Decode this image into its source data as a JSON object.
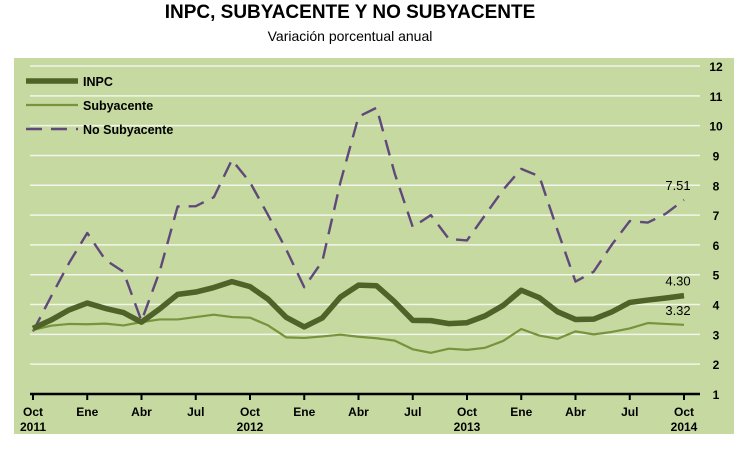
{
  "chart_data": {
    "type": "line",
    "title": "INPC, SUBYACENTE Y NO SUBYACENTE",
    "subtitle": "Variación porcentual anual",
    "x_ticks": [
      {
        "label": "Oct",
        "year": "2011"
      },
      {
        "label": "Ene",
        "year": ""
      },
      {
        "label": "Abr",
        "year": ""
      },
      {
        "label": "Jul",
        "year": ""
      },
      {
        "label": "Oct",
        "year": "2012"
      },
      {
        "label": "Ene",
        "year": ""
      },
      {
        "label": "Abr",
        "year": ""
      },
      {
        "label": "Jul",
        "year": ""
      },
      {
        "label": "Oct",
        "year": "2013"
      },
      {
        "label": "Ene",
        "year": ""
      },
      {
        "label": "Abr",
        "year": ""
      },
      {
        "label": "Jul",
        "year": ""
      },
      {
        "label": "Oct",
        "year": "2014"
      }
    ],
    "x_range": [
      "2011-10",
      "2014-10"
    ],
    "ylim": [
      1,
      12
    ],
    "y_ticks": [
      1,
      2,
      3,
      4,
      5,
      6,
      7,
      8,
      9,
      10,
      11,
      12
    ],
    "y_axis_side": "right",
    "grid": true,
    "legend_position": "top-left",
    "background": "#c5d9a0",
    "series": [
      {
        "name": "INPC",
        "color": "#4f6228",
        "style": "thick",
        "values": [
          3.2,
          3.48,
          3.82,
          4.05,
          3.87,
          3.73,
          3.41,
          3.85,
          4.34,
          4.42,
          4.57,
          4.77,
          4.6,
          4.18,
          3.57,
          3.25,
          3.55,
          4.25,
          4.65,
          4.63,
          4.09,
          3.47,
          3.46,
          3.36,
          3.39,
          3.62,
          3.97,
          4.48,
          4.23,
          3.76,
          3.5,
          3.51,
          3.75,
          4.07,
          4.15,
          4.22,
          4.3
        ],
        "end_label": "4.30"
      },
      {
        "name": "Subyacente",
        "color": "#77933c",
        "style": "thin",
        "values": [
          3.15,
          3.29,
          3.35,
          3.34,
          3.36,
          3.3,
          3.41,
          3.5,
          3.5,
          3.58,
          3.66,
          3.58,
          3.56,
          3.3,
          2.9,
          2.88,
          2.93,
          2.99,
          2.92,
          2.87,
          2.79,
          2.5,
          2.38,
          2.52,
          2.48,
          2.55,
          2.78,
          3.18,
          2.96,
          2.85,
          3.1,
          3.0,
          3.08,
          3.2,
          3.38,
          3.35,
          3.32
        ],
        "end_label": "3.32"
      },
      {
        "name": "No Subyacente",
        "color": "#60497a",
        "style": "dashed",
        "values": [
          3.1,
          4.27,
          5.4,
          6.4,
          5.5,
          5.1,
          3.45,
          5.1,
          7.29,
          7.3,
          7.6,
          8.85,
          8.1,
          7.0,
          5.85,
          4.58,
          5.45,
          8.1,
          10.3,
          10.6,
          8.4,
          6.6,
          7.0,
          6.2,
          6.15,
          7.0,
          7.85,
          8.55,
          8.3,
          6.5,
          4.77,
          5.1,
          6.0,
          6.8,
          6.75,
          7.05,
          7.51
        ],
        "end_label": "7.51"
      }
    ]
  }
}
